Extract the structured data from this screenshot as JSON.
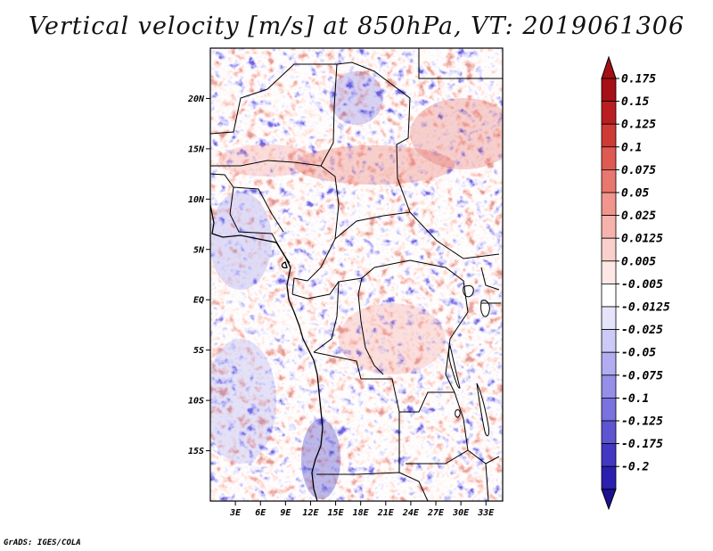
{
  "title": "Vertical velocity [m/s] at 850hPa, VT: 2019061306",
  "credit": "GrADS: IGES/COLA",
  "chart_data": {
    "type": "heatmap",
    "title": "Vertical velocity [m/s] at 850hPa, VT: 2019061306",
    "variable": "Vertical velocity",
    "units": "m/s",
    "level": "850hPa",
    "valid_time": "2019061306",
    "lon_range": [
      0,
      35
    ],
    "lat_range": [
      -20,
      25
    ],
    "x_ticks": [
      {
        "value": 3,
        "label": "3E"
      },
      {
        "value": 6,
        "label": "6E"
      },
      {
        "value": 9,
        "label": "9E"
      },
      {
        "value": 12,
        "label": "12E"
      },
      {
        "value": 15,
        "label": "15E"
      },
      {
        "value": 18,
        "label": "18E"
      },
      {
        "value": 21,
        "label": "21E"
      },
      {
        "value": 24,
        "label": "24E"
      },
      {
        "value": 27,
        "label": "27E"
      },
      {
        "value": 30,
        "label": "30E"
      },
      {
        "value": 33,
        "label": "33E"
      }
    ],
    "y_ticks": [
      {
        "value": 20,
        "label": "20N"
      },
      {
        "value": 15,
        "label": "15N"
      },
      {
        "value": 10,
        "label": "10N"
      },
      {
        "value": 5,
        "label": "5N"
      },
      {
        "value": 0,
        "label": "EQ"
      },
      {
        "value": -5,
        "label": "5S"
      },
      {
        "value": -10,
        "label": "10S"
      },
      {
        "value": -15,
        "label": "15S"
      }
    ],
    "colorbar": {
      "levels": [
        {
          "label": "0.175",
          "color": "#a50f15"
        },
        {
          "label": "0.15",
          "color": "#bb1e22"
        },
        {
          "label": "0.125",
          "color": "#cf3a35"
        },
        {
          "label": "0.1",
          "color": "#df5a52"
        },
        {
          "label": "0.075",
          "color": "#e8776e"
        },
        {
          "label": "0.05",
          "color": "#f1958d"
        },
        {
          "label": "0.025",
          "color": "#f6b3ad"
        },
        {
          "label": "0.0125",
          "color": "#fad0cc"
        },
        {
          "label": "0.005",
          "color": "#fde8e6"
        },
        {
          "label": "-0.005",
          "color": "#ffffff"
        },
        {
          "label": "-0.0125",
          "color": "#e6e4fb"
        },
        {
          "label": "-0.025",
          "color": "#cccaf6"
        },
        {
          "label": "-0.05",
          "color": "#b1adf0"
        },
        {
          "label": "-0.075",
          "color": "#958fe8"
        },
        {
          "label": "-0.1",
          "color": "#7a72df"
        },
        {
          "label": "-0.125",
          "color": "#5e55d3"
        },
        {
          "label": "-0.175",
          "color": "#4238c4"
        },
        {
          "label": "-0.2",
          "color": "#2a1faf"
        }
      ],
      "top_color": "#a50f15",
      "bottom_color": "#1c1290"
    }
  }
}
